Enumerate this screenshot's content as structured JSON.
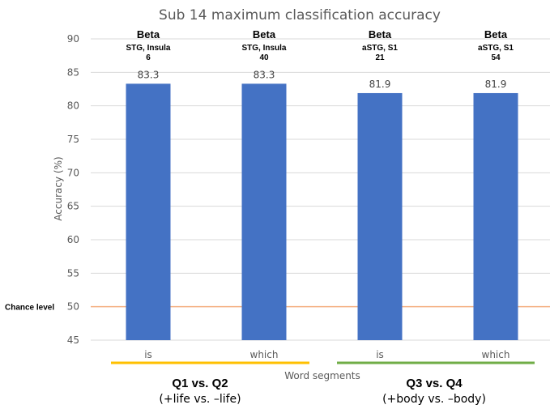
{
  "chart_data": {
    "type": "bar",
    "title": "Sub 14 maximum classification accuracy",
    "xlabel": "Word segments",
    "ylabel": "Accuracy (%)",
    "ylim": [
      45,
      90
    ],
    "yticks": [
      45,
      50,
      55,
      60,
      65,
      70,
      75,
      80,
      85,
      90
    ],
    "grid": true,
    "categories": [
      "is",
      "which",
      "is",
      "which"
    ],
    "values": [
      83.3,
      83.3,
      81.9,
      81.9
    ],
    "data_labels": [
      "83.3",
      "83.3",
      "81.9",
      "81.9"
    ],
    "bar_color": "#4472C4",
    "annotations": [
      {
        "band": "Beta",
        "region": "STG, Insula",
        "count": "6"
      },
      {
        "band": "Beta",
        "region": "STG, Insula",
        "count": "40"
      },
      {
        "band": "Beta",
        "region": "aSTG, S1",
        "count": "21"
      },
      {
        "band": "Beta",
        "region": "aSTG, S1",
        "count": "54"
      }
    ],
    "reference_line": {
      "label": "Chance level",
      "value": 50,
      "color": "#F4B183"
    },
    "groups": [
      {
        "line1": "Q1 vs. Q2",
        "line2": "(+life vs. –life)",
        "color": "#FFC000",
        "categories": [
          0,
          1
        ]
      },
      {
        "line1": "Q3 vs. Q4",
        "line2": "(+body vs. –body)",
        "color": "#70AD47",
        "categories": [
          2,
          3
        ]
      }
    ]
  }
}
